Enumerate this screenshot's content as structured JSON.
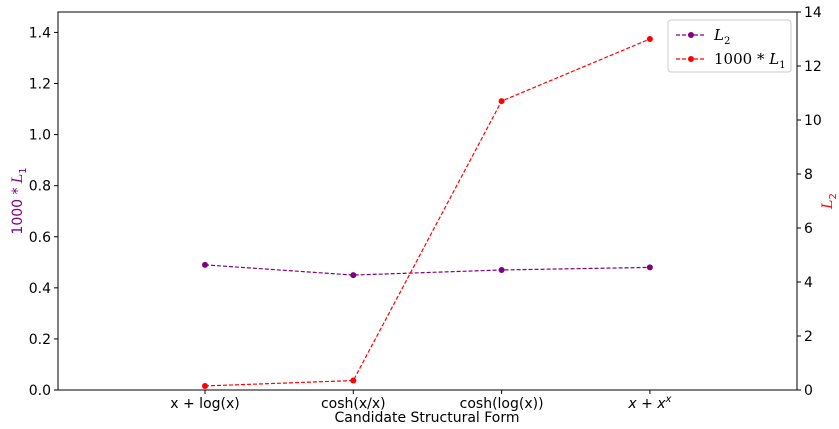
{
  "chart_data": {
    "type": "line",
    "categories": [
      "x + log(x)",
      "cosh(x/x)",
      "cosh(log(x))",
      "x + x^x"
    ],
    "xlabel": "Candidate Structural Form",
    "ylabel_left": "1000 * L1",
    "ylabel_right": "L2",
    "ylim_left": [
      0,
      1.48
    ],
    "ylim_right": [
      0,
      14
    ],
    "yticks_left": [
      0.0,
      0.2,
      0.4,
      0.6,
      0.8,
      1.0,
      1.2,
      1.4
    ],
    "yticks_right": [
      0,
      2,
      4,
      6,
      8,
      10,
      12,
      14
    ],
    "grid": false,
    "legend_position": "top-right",
    "series": [
      {
        "name": "L2",
        "axis": "left",
        "color": "#800080",
        "linestyle": "dashed",
        "marker": "circle",
        "values": [
          0.49,
          0.45,
          0.47,
          0.48
        ]
      },
      {
        "name": "1000 * L1",
        "axis": "right",
        "color": "#ff0000",
        "linestyle": "dashed",
        "marker": "circle",
        "values": [
          0.15,
          0.35,
          10.7,
          13.0
        ]
      }
    ]
  }
}
